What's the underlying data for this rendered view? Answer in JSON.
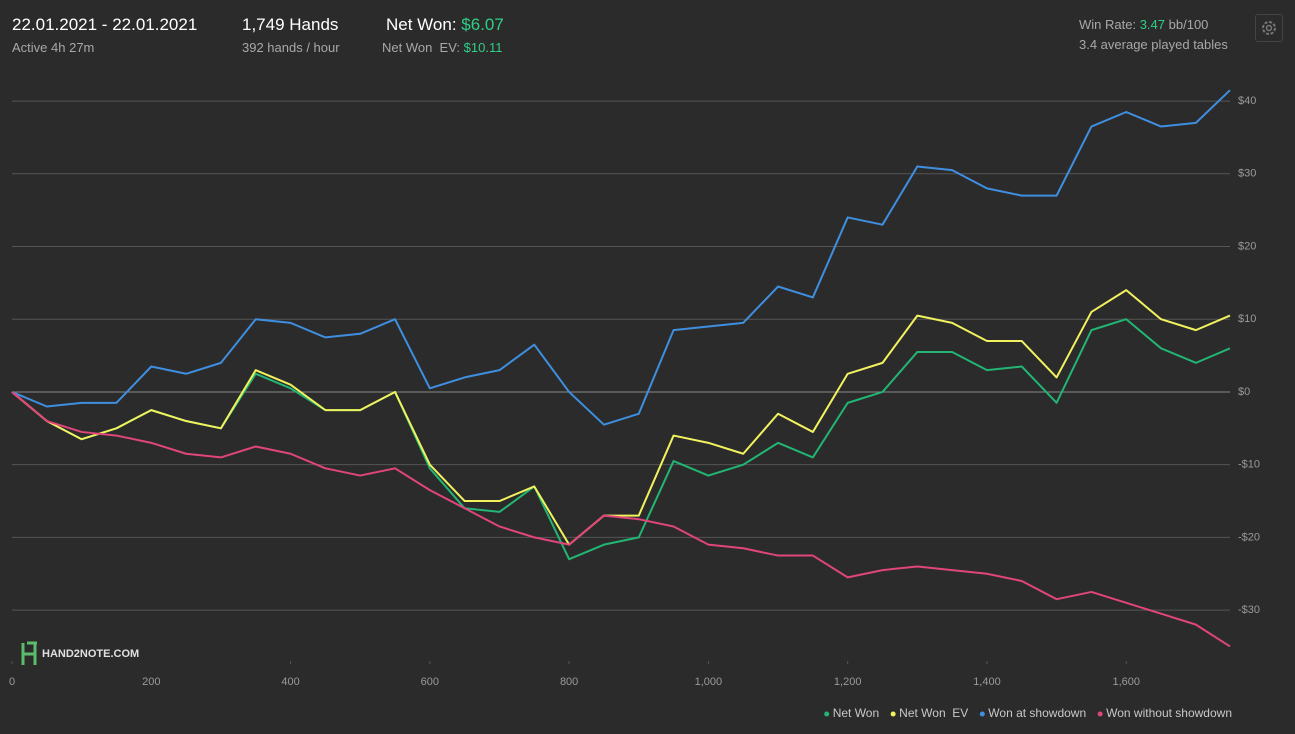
{
  "header": {
    "date_range": "22.01.2021 - 22.01.2021",
    "active": "Active 4h 27m",
    "hands": "1,749 Hands",
    "hands_per_hour": "392 hands / hour",
    "net_won_label": "Net Won:",
    "net_won_value": "$6.07",
    "net_won_ev_label": "Net Won  EV:",
    "net_won_ev_value": "$10.11",
    "win_rate_label": "Win Rate:",
    "win_rate_value": "3.47",
    "win_rate_unit": "bb/100",
    "tables": "3.4 average played tables",
    "logo": "HAND2NOTE.COM"
  },
  "chart_data": {
    "type": "line",
    "x": [
      0,
      50,
      100,
      150,
      200,
      250,
      300,
      350,
      400,
      450,
      500,
      550,
      600,
      650,
      700,
      750,
      800,
      850,
      900,
      950,
      1000,
      1050,
      1100,
      1150,
      1200,
      1250,
      1300,
      1350,
      1400,
      1450,
      1500,
      1550,
      1600,
      1650,
      1700,
      1749
    ],
    "series": [
      {
        "name": "Net Won",
        "color": "#22b573",
        "values": [
          0,
          -4,
          -6.5,
          -5,
          -2.5,
          -4,
          -5,
          2.5,
          0.5,
          -2.5,
          -2.5,
          0,
          -10.5,
          -16,
          -16.5,
          -13,
          -23,
          -21,
          -20,
          -9.5,
          -11.5,
          -10,
          -7,
          -9,
          -1.5,
          0,
          5.5,
          5.5,
          3,
          3.5,
          -1.5,
          8.5,
          10,
          6,
          4,
          6
        ]
      },
      {
        "name": "Net Won  EV",
        "color": "#f2f25e",
        "values": [
          0,
          -4,
          -6.5,
          -5,
          -2.5,
          -4,
          -5,
          3,
          1,
          -2.5,
          -2.5,
          0,
          -10,
          -15,
          -15,
          -13,
          -21,
          -17,
          -17,
          -6,
          -7,
          -8.5,
          -3,
          -5.5,
          2.5,
          4,
          10.5,
          9.5,
          7,
          7,
          2,
          11,
          14,
          10,
          8.5,
          10.5
        ]
      },
      {
        "name": "Won at showdown",
        "color": "#3f8fe0",
        "values": [
          0,
          -2,
          -1.5,
          -1.5,
          3.5,
          2.5,
          4,
          10,
          9.5,
          7.5,
          8,
          10,
          0.5,
          2,
          3,
          6.5,
          0,
          -4.5,
          -3,
          8.5,
          9,
          9.5,
          14.5,
          13,
          24,
          23,
          31,
          30.5,
          28,
          27,
          27,
          36.5,
          38.5,
          36.5,
          37,
          41.5
        ]
      },
      {
        "name": "Won without showdown",
        "color": "#e0457b",
        "values": [
          0,
          -4,
          -5.5,
          -6,
          -7,
          -8.5,
          -9,
          -7.5,
          -8.5,
          -10.5,
          -11.5,
          -10.5,
          -13.5,
          -16,
          -18.5,
          -20,
          -21,
          -17,
          -17.5,
          -18.5,
          -21,
          -21.5,
          -22.5,
          -22.5,
          -25.5,
          -24.5,
          -24,
          -24.5,
          -25,
          -26,
          -28.5,
          -27.5,
          -29,
          -30.5,
          -32,
          -35
        ]
      }
    ],
    "xlim": [
      0,
      1749
    ],
    "ylim": [
      -37,
      44
    ],
    "xticks": [
      0,
      200,
      400,
      600,
      800,
      {
        "value": 1000,
        "label": "1,000"
      },
      {
        "value": 1200,
        "label": "1,200"
      },
      {
        "value": 1400,
        "label": "1,400"
      },
      {
        "value": 1600,
        "label": "1,600"
      }
    ],
    "yticks": [
      {
        "value": -30,
        "label": "-$30"
      },
      {
        "value": -20,
        "label": "-$20"
      },
      {
        "value": -10,
        "label": "-$10"
      },
      {
        "value": 0,
        "label": "$0"
      },
      {
        "value": 10,
        "label": "$10"
      },
      {
        "value": 20,
        "label": "$20"
      },
      {
        "value": 30,
        "label": "$30"
      },
      {
        "value": 40,
        "label": "$40"
      }
    ],
    "grid": true,
    "legend": "bottom-right"
  }
}
